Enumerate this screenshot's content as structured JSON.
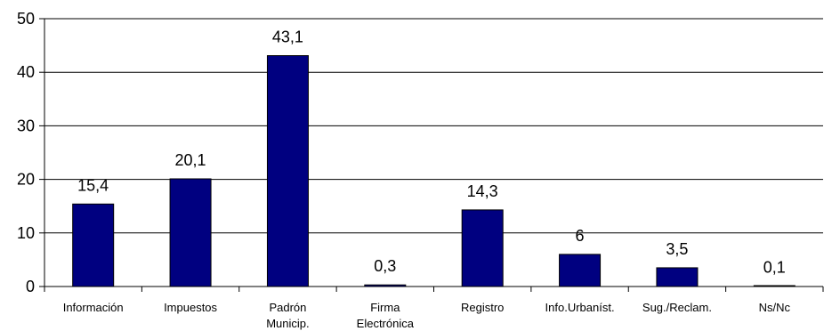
{
  "chart_data": {
    "type": "bar",
    "categories": [
      [
        "Información"
      ],
      [
        "Impuestos"
      ],
      [
        "Padrón",
        "Municip."
      ],
      [
        "Firma",
        "Electrónica"
      ],
      [
        "Registro"
      ],
      [
        "Info.Urbaníst."
      ],
      [
        "Sug./Reclam."
      ],
      [
        "Ns/Nc"
      ]
    ],
    "values": [
      15.4,
      20.1,
      43.1,
      0.3,
      14.3,
      6,
      3.5,
      0.1
    ],
    "data_labels": [
      "15,4",
      "20,1",
      "43,1",
      "0,3",
      "14,3",
      "6",
      "3,5",
      "0,1"
    ],
    "ylim": [
      0,
      50
    ],
    "yticks": [
      0,
      10,
      20,
      30,
      40,
      50
    ],
    "ytick_labels": [
      "0",
      "10",
      "20",
      "30",
      "40",
      "50"
    ],
    "grid": true,
    "legend": "none",
    "bar_color": "#000080",
    "title": "",
    "xlabel": "",
    "ylabel": ""
  }
}
